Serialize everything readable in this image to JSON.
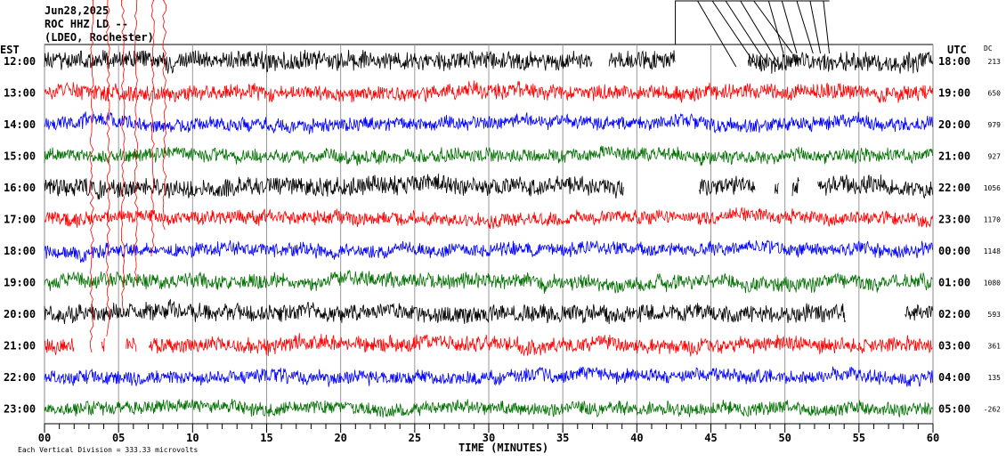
{
  "header": {
    "date": "Jun28,2025",
    "station": "ROC HHZ LD --",
    "network": "(LDEO, Rochester)"
  },
  "left_tz": "EST",
  "right_tz": "UTC",
  "dc_label": "DC",
  "footer": {
    "scale": "Each Vertical Division =  333.33 microvolts",
    "xlabel": "TIME (MINUTES)"
  },
  "chart_data": {
    "type": "line",
    "xlabel": "TIME (MINUTES)",
    "xlim": [
      0,
      60
    ],
    "x_ticks": [
      "00",
      "05",
      "10",
      "15",
      "20",
      "25",
      "30",
      "35",
      "40",
      "45",
      "50",
      "55",
      "60"
    ],
    "colors": [
      "#000000",
      "#ff0000",
      "#0000ff",
      "#007000"
    ],
    "rows": [
      {
        "est": "12:00",
        "utc": "18:00",
        "dc": "213",
        "gaps": [
          [
            37.0,
            38.1
          ],
          [
            42.6,
            47.5
          ]
        ]
      },
      {
        "est": "13:00",
        "utc": "19:00",
        "dc": "650",
        "gaps": []
      },
      {
        "est": "14:00",
        "utc": "20:00",
        "dc": "979",
        "gaps": []
      },
      {
        "est": "15:00",
        "utc": "21:00",
        "dc": "927",
        "gaps": []
      },
      {
        "est": "16:00",
        "utc": "22:00",
        "dc": "1056",
        "gaps": [
          [
            39.1,
            44.2
          ],
          [
            48.0,
            49.3
          ],
          [
            49.6,
            50.5
          ],
          [
            51.0,
            52.2
          ]
        ]
      },
      {
        "est": "17:00",
        "utc": "23:00",
        "dc": "1170",
        "gaps": []
      },
      {
        "est": "18:00",
        "utc": "00:00",
        "dc": "1148",
        "gaps": []
      },
      {
        "est": "19:00",
        "utc": "01:00",
        "dc": "1080",
        "gaps": []
      },
      {
        "est": "20:00",
        "utc": "02:00",
        "dc": "593",
        "gaps": [
          [
            54.1,
            58.1
          ]
        ]
      },
      {
        "est": "21:00",
        "utc": "03:00",
        "dc": "361",
        "gaps": [
          [
            2.0,
            3.8
          ],
          [
            4.1,
            5.5
          ],
          [
            6.2,
            7.0
          ]
        ]
      },
      {
        "est": "22:00",
        "utc": "04:00",
        "dc": "135",
        "gaps": []
      },
      {
        "est": "23:00",
        "utc": "05:00",
        "dc": "-262",
        "gaps": []
      }
    ]
  }
}
